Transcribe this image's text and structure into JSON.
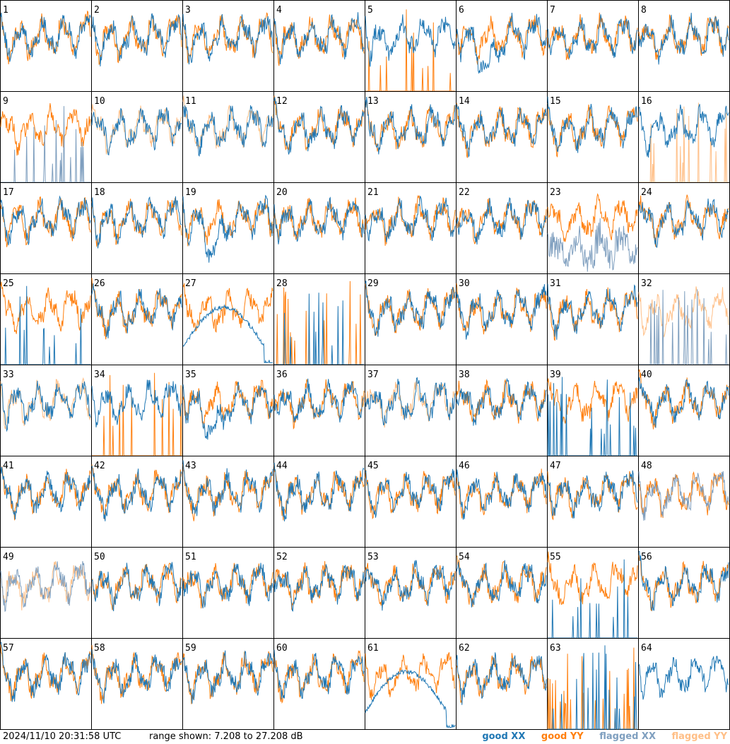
{
  "chart_data": {
    "type": "line",
    "layout": "small-multiples",
    "tiles": [
      1,
      2,
      3,
      4,
      5,
      6,
      7,
      8,
      9,
      10,
      11,
      12,
      13,
      14,
      15,
      16,
      17,
      18,
      19,
      20,
      21,
      22,
      23,
      24,
      25,
      26,
      27,
      28,
      29,
      30,
      31,
      32,
      33,
      34,
      35,
      36,
      37,
      38,
      39,
      40,
      41,
      42,
      43,
      44,
      45,
      46,
      47,
      48,
      49,
      50,
      51,
      52,
      53,
      54,
      55,
      56,
      57,
      58,
      59,
      60,
      61,
      62,
      63,
      64
    ],
    "ylim": [
      7.208,
      27.208
    ],
    "yunit": "dB",
    "series": [
      {
        "key": "gx",
        "name": "good XX",
        "color": "#1f77b4"
      },
      {
        "key": "gy",
        "name": "good YY",
        "color": "#ff7f0e"
      },
      {
        "key": "fx",
        "name": "flagged XX",
        "color": "#7f9fbf"
      },
      {
        "key": "fy",
        "name": "flagged YY",
        "color": "#ffbf87"
      }
    ],
    "tile_status": {
      "5": {
        "x": "good",
        "y": "spiky"
      },
      "6": {
        "x": "dip",
        "y": "good"
      },
      "9": {
        "x": "flagged_spiky",
        "y": "good"
      },
      "10": {
        "x": "good",
        "y": "flagged"
      },
      "11": {
        "x": "good",
        "y": "flagged"
      },
      "16": {
        "x": "good",
        "y": "flagged_spiky"
      },
      "19": {
        "x": "dip",
        "y": "good"
      },
      "23": {
        "x": "flagged_low",
        "y": "good"
      },
      "25": {
        "x": "spiky",
        "y": "good"
      },
      "27": {
        "x": "arch",
        "y": "good"
      },
      "28": {
        "x": "spiky",
        "y": "spiky"
      },
      "32": {
        "x": "flagged_spiky",
        "y": "flagged"
      },
      "33": {
        "x": "good",
        "y": "flagged"
      },
      "34": {
        "x": "good",
        "y": "spiky"
      },
      "35": {
        "x": "dip",
        "y": "good"
      },
      "37": {
        "x": "good",
        "y": "flagged"
      },
      "39": {
        "x": "spiky",
        "y": "good"
      },
      "48": {
        "x": "flagged",
        "y": "good"
      },
      "49": {
        "x": "flagged",
        "y": "flagged"
      },
      "55": {
        "x": "spiky",
        "y": "good"
      },
      "61": {
        "x": "arch",
        "y": "good"
      },
      "63": {
        "x": "spiky",
        "y": "spiky"
      },
      "64": {
        "x": "good",
        "y": "none"
      }
    }
  },
  "footer": {
    "timestamp": "2024/11/10 20:31:58 UTC",
    "range": "range shown: 7.208 to 27.208 dB",
    "legend_good_xx": "good XX",
    "legend_good_yy": "good YY",
    "legend_flagged_xx": "flagged XX",
    "legend_flagged_yy": "flagged YY"
  },
  "colors": {
    "good_xx": "#1f77b4",
    "good_yy": "#ff7f0e",
    "flagged_xx": "#7f9fbf",
    "flagged_yy": "#ffbf87"
  }
}
